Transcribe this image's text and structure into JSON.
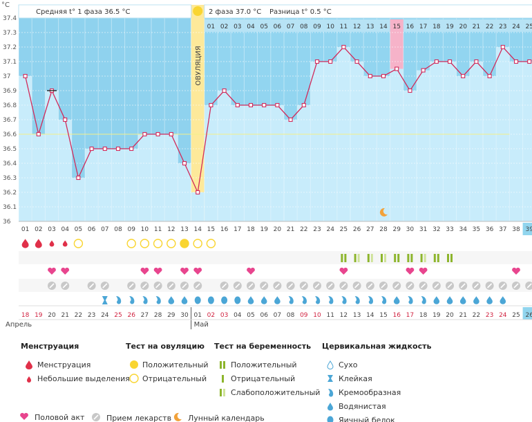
{
  "header": {
    "unit": "°C",
    "phase1": "Средняя t° 1 фаза 36.5 °C",
    "phase2": "2 фаза 37.0 °C",
    "diff": "Разница t° 0.5 °C"
  },
  "ovulation_label": "ОВУЛЯЦИЯ",
  "ovulation_day": 14,
  "cycle_days_phase2": [
    "01",
    "02",
    "03",
    "04",
    "05",
    "06",
    "07",
    "08",
    "09",
    "10",
    "11",
    "12",
    "13",
    "14",
    "15",
    "16",
    "17",
    "18",
    "19",
    "20",
    "21",
    "22",
    "23",
    "24",
    "25"
  ],
  "highlight_phase2_day": "15",
  "chart_data": {
    "type": "line",
    "ylim": [
      36.0,
      37.4
    ],
    "yticks": [
      "36",
      "36.1",
      "36.2",
      "36.3",
      "36.4",
      "36.5",
      "36.6",
      "36.7",
      "36.8",
      "36.9",
      "37",
      "37.1",
      "37.2",
      "37.3",
      "37.4"
    ],
    "x": [
      "01",
      "02",
      "03",
      "04",
      "05",
      "06",
      "07",
      "08",
      "09",
      "10",
      "11",
      "12",
      "13",
      "14",
      "15",
      "16",
      "17",
      "18",
      "19",
      "20",
      "21",
      "22",
      "23",
      "24",
      "25",
      "26",
      "27",
      "28",
      "29",
      "30",
      "31",
      "32",
      "33",
      "34",
      "35",
      "36",
      "37",
      "38",
      "39"
    ],
    "current_day": "39",
    "values": [
      37.0,
      36.6,
      36.9,
      36.7,
      36.3,
      36.5,
      36.5,
      36.5,
      36.5,
      36.6,
      36.6,
      36.6,
      36.4,
      36.2,
      36.8,
      36.9,
      36.8,
      36.8,
      36.8,
      36.8,
      36.7,
      36.8,
      37.1,
      37.1,
      37.2,
      37.1,
      37.0,
      37.0,
      37.05,
      36.9,
      37.04,
      37.1,
      37.1,
      37.0,
      37.1,
      37.0,
      37.2,
      37.1,
      37.1
    ],
    "coverline": 36.6,
    "phase1_mean": 36.5,
    "phase2_mean": 37.0
  },
  "rows": {
    "menstruation": [
      "big",
      "big",
      "small",
      "small"
    ],
    "ovulation_test": [
      "",
      "",
      "",
      "",
      "neg",
      "",
      "",
      "",
      "neg",
      "neg",
      "neg",
      "neg",
      "pos",
      "neg",
      "neg"
    ],
    "pregnancy_test_days": [
      25,
      26,
      27,
      28,
      29,
      30,
      31,
      32,
      33
    ],
    "pregnancy_test": [
      "pos",
      "faint",
      "faint",
      "faint",
      "pos",
      "pos",
      "faint",
      "pos",
      "pos"
    ],
    "pregnancy_test_days_2": [
      32,
      33
    ],
    "intercourse_days": [
      3,
      4,
      10,
      11,
      13,
      14,
      18,
      25,
      30,
      31,
      38
    ],
    "medication_days": [
      3,
      4,
      6,
      7,
      9,
      10,
      11,
      12,
      13,
      14,
      16,
      17,
      18,
      19,
      20,
      21,
      22,
      23,
      24,
      25,
      26,
      27,
      28,
      29,
      30,
      31,
      32,
      33,
      34,
      35,
      36,
      37,
      38,
      39
    ],
    "fluid": [
      "",
      "",
      "",
      "",
      "",
      "",
      "sticky",
      "creamy",
      "creamy",
      "creamy",
      "creamy",
      "watery",
      "watery",
      "eggwhite",
      "eggwhite",
      "eggwhite",
      "eggwhite",
      "watery",
      "watery",
      "watery",
      "creamy",
      "creamy",
      "creamy",
      "creamy",
      "creamy",
      "creamy",
      "creamy",
      "creamy",
      "watery",
      "creamy",
      "creamy",
      "watery",
      "watery",
      "watery",
      "watery",
      "watery",
      "watery"
    ],
    "moon_day": 28
  },
  "dates": [
    "18",
    "19",
    "20",
    "21",
    "22",
    "23",
    "24",
    "25",
    "26",
    "27",
    "28",
    "29",
    "30",
    "01",
    "02",
    "03",
    "04",
    "05",
    "06",
    "07",
    "08",
    "09",
    "10",
    "11",
    "12",
    "13",
    "14",
    "15",
    "16",
    "17",
    "18",
    "19",
    "20",
    "21",
    "22",
    "23",
    "24",
    "25",
    "26"
  ],
  "weekend_indices": [
    0,
    1,
    7,
    8,
    14,
    15,
    21,
    22,
    28,
    29,
    35,
    36
  ],
  "month_april": "Апрель",
  "month_may": "Май",
  "colors": {
    "phase1_fill": "#8fd2ee",
    "phase2_fill": "#92d5f0",
    "column_fill": "#c8ecfb",
    "line": "#d12a5a",
    "ovulation": "#fde99a",
    "highlight": "#f6b3c9",
    "current_day": "#91d5ee",
    "coverline": "#f3f08a"
  },
  "legend": {
    "menstruation": {
      "title": "Менструация",
      "items": [
        "Менструация",
        "Небольшие выделения"
      ]
    },
    "ovulation_test": {
      "title": "Тест на овуляцию",
      "items": [
        "Положительный",
        "Отрицательный"
      ]
    },
    "pregnancy_test": {
      "title": "Тест на беременность",
      "items": [
        "Положительный",
        "Отрицательный",
        "Слабоположительный"
      ]
    },
    "fluid": {
      "title": "Цервикальная жидкость",
      "items": [
        "Сухо",
        "Клейкая",
        "Кремообразная",
        "Водянистая",
        "Яичный белок"
      ]
    }
  },
  "bottom_legend": {
    "intercourse": "Половой акт",
    "medication": "Прием лекарств",
    "moon": "Лунный календарь"
  }
}
